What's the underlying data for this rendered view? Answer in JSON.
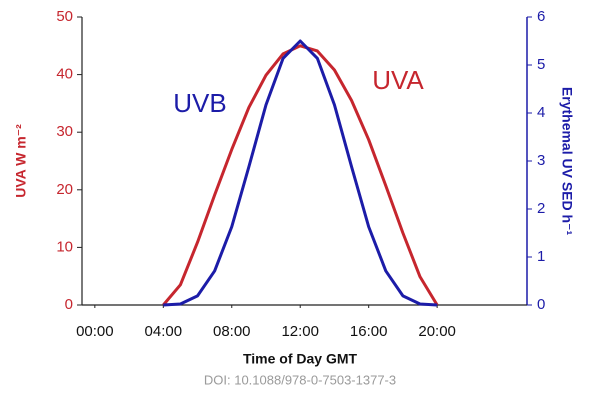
{
  "chart_data": {
    "type": "line",
    "x_label": "Time of Day GMT",
    "y_label": "UVA W m⁻²",
    "y2_label": "Erythemal UV SED h⁻¹",
    "source": "DOI: 10.1088/978-0-7503-1377-3",
    "x": [
      4,
      5,
      6,
      7,
      8,
      9,
      10,
      11,
      12,
      13,
      14,
      15,
      16,
      17,
      18,
      19,
      20
    ],
    "series": [
      {
        "name": "UVA",
        "color": "#c6262e",
        "axis": "y",
        "values": [
          0,
          3.5,
          10.9,
          19.1,
          27,
          34.3,
          39.9,
          43.6,
          45,
          44.1,
          40.8,
          35.5,
          28.7,
          20.7,
          12.5,
          4.9,
          0
        ]
      },
      {
        "name": "UVB",
        "color": "#1c1ca8",
        "axis": "y2",
        "values": [
          0,
          0.02,
          0.19,
          0.71,
          1.63,
          2.88,
          4.17,
          5.14,
          5.5,
          5.14,
          4.17,
          2.88,
          1.63,
          0.71,
          0.19,
          0.02,
          0
        ]
      }
    ],
    "xlim": [
      -0.75,
      25.25
    ],
    "xticks": [
      {
        "value": 0,
        "label": "00:00"
      },
      {
        "value": 4,
        "label": "04:00"
      },
      {
        "value": 8,
        "label": "08:00"
      },
      {
        "value": 12,
        "label": "12:00"
      },
      {
        "value": 16,
        "label": "16:00"
      },
      {
        "value": 20,
        "label": "20:00"
      }
    ],
    "ylim": [
      0,
      50
    ],
    "yticks": [
      0,
      10,
      20,
      30,
      40,
      50
    ],
    "y2lim": [
      0,
      6
    ],
    "y2ticks": [
      0,
      1,
      2,
      3,
      4,
      5,
      6
    ]
  }
}
